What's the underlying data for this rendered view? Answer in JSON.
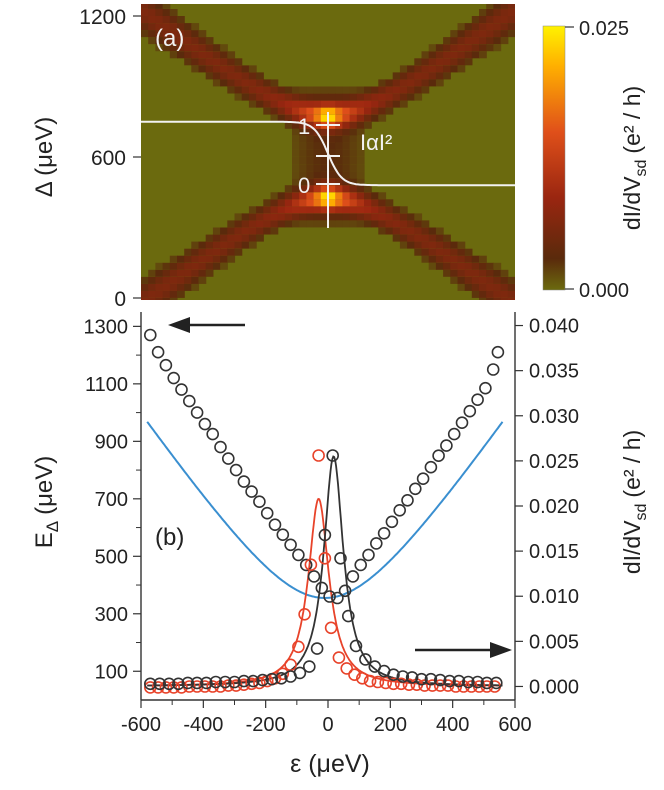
{
  "colors": {
    "map_low": "#6b6a0e",
    "map_mid": "#c0451c",
    "map_high": "#fff200",
    "curve_white": "#f2f2f2",
    "blue_fit": "#3a8fd0",
    "black_series": "#333333",
    "red_series": "#e8432a",
    "axis": "#333333"
  },
  "chart_data": [
    {
      "panel": "(a)",
      "type": "heatmap",
      "ylabel": "Δ (μeV)",
      "yticks": [
        "0",
        "600",
        "1200"
      ],
      "ylim": [
        0,
        1200
      ],
      "xlim": [
        -600,
        600
      ],
      "colorbar": {
        "label": "dI/dV",
        "label_sub": "sd",
        "label_unit": "(e² / h)",
        "max_label": "0.025",
        "min_label": "0.000",
        "range": [
          0.0,
          0.025
        ]
      },
      "annotations": {
        "level_1": "1",
        "level_0": "0",
        "weight": "IαI²"
      },
      "description_data": {
        "anticrossing_center_eps": 0,
        "anticrossing_center_delta": 600,
        "upper_peak_delta": 780,
        "lower_peak_delta": 430,
        "white_curve_high": 750,
        "white_curve_low": 480
      }
    },
    {
      "panel": "(b)",
      "type": "scatter",
      "xlabel": "ε (μeV)",
      "xticks": [
        "-600",
        "-400",
        "-200",
        "0",
        "200",
        "400",
        "600"
      ],
      "xlim": [
        -600,
        600
      ],
      "left_axis": {
        "label": "E",
        "label_sub": "Δ",
        "label_unit": "(μeV)",
        "ticks": [
          "100",
          "300",
          "500",
          "700",
          "900",
          "1100",
          "1300"
        ],
        "ylim": [
          0,
          1350
        ]
      },
      "right_axis": {
        "label": "dI/dV",
        "label_sub": "sd",
        "label_unit": "(e² / h)",
        "ticks": [
          "0.000",
          "0.005",
          "0.010",
          "0.015",
          "0.020",
          "0.025",
          "0.030",
          "0.035",
          "0.040"
        ],
        "ylim": [
          -0.0015,
          0.0415
        ]
      },
      "series": [
        {
          "name": "E_Δ (black circles, left axis)",
          "axis": "left",
          "x": [
            -570,
            -545,
            -520,
            -495,
            -470,
            -445,
            -420,
            -395,
            -370,
            -345,
            -320,
            -295,
            -270,
            -245,
            -220,
            -195,
            -170,
            -145,
            -120,
            -95,
            -70,
            -45,
            -20,
            5,
            30,
            55,
            80,
            105,
            130,
            155,
            180,
            205,
            230,
            255,
            280,
            305,
            330,
            355,
            380,
            405,
            430,
            455,
            480,
            505,
            530,
            545
          ],
          "values": [
            1270,
            1210,
            1165,
            1120,
            1080,
            1040,
            1000,
            960,
            925,
            880,
            840,
            800,
            760,
            725,
            690,
            650,
            610,
            575,
            540,
            505,
            470,
            430,
            390,
            360,
            355,
            380,
            430,
            470,
            505,
            545,
            580,
            620,
            660,
            695,
            735,
            770,
            810,
            850,
            885,
            925,
            965,
            1005,
            1045,
            1085,
            1150,
            1210
          ]
        },
        {
          "name": "E_Δ fit (blue line, left axis)",
          "axis": "left",
          "fit": "hyperbola",
          "center": -10,
          "min": 355,
          "slope": 1.58
        },
        {
          "name": "dI/dV black circles (right axis)",
          "axis": "right",
          "x": [
            -570,
            -540,
            -510,
            -480,
            -450,
            -420,
            -390,
            -360,
            -330,
            -300,
            -270,
            -240,
            -210,
            -180,
            -150,
            -120,
            -90,
            -60,
            -35,
            -10,
            15,
            40,
            65,
            90,
            120,
            150,
            180,
            210,
            240,
            270,
            300,
            330,
            360,
            390,
            420,
            450,
            480,
            510,
            540
          ],
          "values": [
            0.0003,
            0.0003,
            0.0003,
            0.0003,
            0.0004,
            0.0004,
            0.0004,
            0.0005,
            0.0005,
            0.0005,
            0.0006,
            0.0006,
            0.0007,
            0.0008,
            0.0009,
            0.0011,
            0.0015,
            0.0022,
            0.0042,
            0.0168,
            0.0256,
            0.0142,
            0.0078,
            0.0045,
            0.003,
            0.0022,
            0.0017,
            0.0013,
            0.0011,
            0.001,
            0.0008,
            0.0008,
            0.0007,
            0.0006,
            0.0006,
            0.0005,
            0.0005,
            0.0004,
            0.0004
          ]
        },
        {
          "name": "dI/dV black fit (right axis)",
          "axis": "right",
          "fit": "lorentzian",
          "center": 18,
          "amplitude": 0.0255,
          "width": 38
        },
        {
          "name": "dI/dV red circles (right axis)",
          "axis": "right",
          "x": [
            -570,
            -545,
            -520,
            -495,
            -470,
            -445,
            -420,
            -395,
            -370,
            -345,
            -320,
            -295,
            -270,
            -245,
            -220,
            -195,
            -170,
            -145,
            -120,
            -95,
            -75,
            -55,
            -30,
            -10,
            10,
            35,
            60,
            85,
            110,
            135,
            160,
            185,
            210,
            235,
            260,
            285,
            310,
            335,
            360,
            385,
            410,
            435,
            460,
            485,
            510,
            535
          ],
          "values": [
            -0.0001,
            -0.0001,
            -0.0001,
            -0.0001,
            -0.0001,
            0.0,
            0.0,
            0.0,
            0.0,
            0.0,
            0.0001,
            0.0001,
            0.0002,
            0.0003,
            0.0004,
            0.0006,
            0.0009,
            0.0014,
            0.0024,
            0.0044,
            0.008,
            0.0135,
            0.0256,
            0.0142,
            0.0065,
            0.0032,
            0.002,
            0.0013,
            0.0009,
            0.0006,
            0.0005,
            0.0004,
            0.0003,
            0.0003,
            0.0002,
            0.0002,
            0.0001,
            0.0001,
            0.0001,
            0.0001,
            0.0,
            0.0,
            0.0,
            0.0,
            0.0,
            0.0
          ]
        },
        {
          "name": "dI/dV red fit (right axis)",
          "axis": "right",
          "fit": "lorentzian",
          "center": -30,
          "amplitude": 0.0208,
          "width": 40
        }
      ],
      "arrows": [
        {
          "direction": "left",
          "points_to": "left axis"
        },
        {
          "direction": "right",
          "points_to": "right axis"
        }
      ]
    }
  ]
}
